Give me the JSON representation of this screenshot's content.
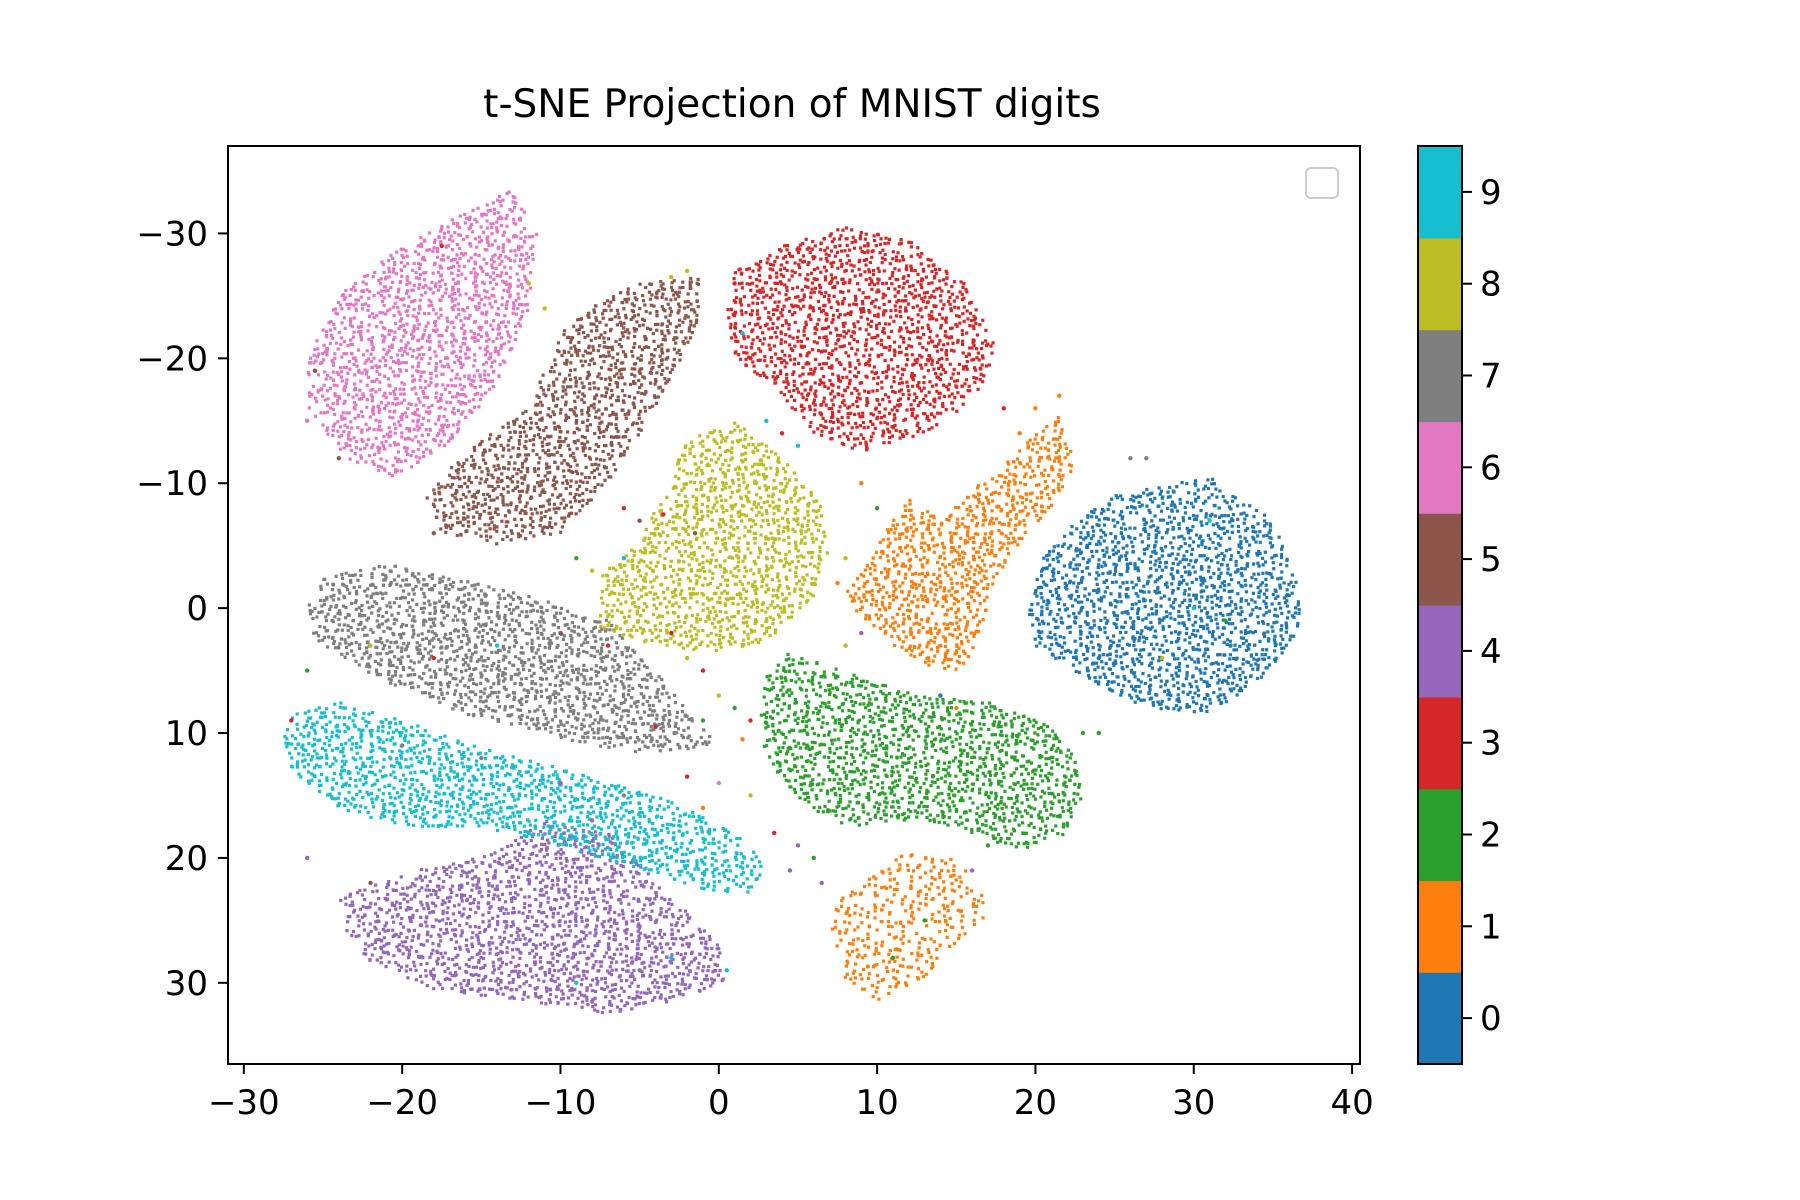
{
  "chart_data": {
    "type": "scatter",
    "title": "t-SNE Projection of MNIST digits",
    "xlabel": "",
    "ylabel": "",
    "xlim": [
      -31,
      40.5
    ],
    "ylim": [
      -37,
      36.5
    ],
    "y_inverted": true,
    "x_ticks": [
      -30,
      -20,
      -10,
      0,
      10,
      20,
      30,
      40
    ],
    "x_tick_labels": [
      "−30",
      "−20",
      "−10",
      "0",
      "10",
      "20",
      "30",
      "40"
    ],
    "y_ticks": [
      -30,
      -20,
      -10,
      0,
      10,
      20,
      30
    ],
    "y_tick_labels": [
      "−30",
      "−20",
      "−10",
      "0",
      "10",
      "20",
      "30"
    ],
    "grid": false,
    "legend": {
      "placement": "top-right",
      "entries": []
    },
    "colorbar": {
      "labels": [
        "0",
        "1",
        "2",
        "3",
        "4",
        "5",
        "6",
        "7",
        "8",
        "9"
      ],
      "colors": [
        "#1f77b4",
        "#ff7f0e",
        "#2ca02c",
        "#d62728",
        "#9467bd",
        "#8c564b",
        "#e377c2",
        "#7f7f7f",
        "#bcbd22",
        "#17becf"
      ]
    },
    "series": [
      {
        "name": "0",
        "color": "#1f77b4",
        "clusters": [
          {
            "polygon": [
              [
                25,
                -9
              ],
              [
                31,
                -10.5
              ],
              [
                35,
                -7
              ],
              [
                36.5,
                -2
              ],
              [
                37,
                1
              ],
              [
                35,
                5
              ],
              [
                31,
                8.5
              ],
              [
                27,
                8
              ],
              [
                23,
                5.5
              ],
              [
                20,
                3
              ],
              [
                19.5,
                0
              ],
              [
                20.5,
                -4
              ],
              [
                23,
                -7.5
              ]
            ],
            "density": 1.0
          }
        ]
      },
      {
        "name": "1",
        "color": "#ff7f0e",
        "clusters": [
          {
            "polygon": [
              [
                14,
                -7
              ],
              [
                17,
                -10.5
              ],
              [
                21.5,
                -15.5
              ],
              [
                22.5,
                -11.5
              ],
              [
                21,
                -8
              ],
              [
                19,
                -5
              ],
              [
                17.5,
                -2
              ],
              [
                16.5,
                2
              ],
              [
                15.5,
                5
              ],
              [
                13.5,
                5
              ],
              [
                11,
                3
              ],
              [
                8.5,
                0
              ],
              [
                8,
                -1.5
              ],
              [
                9.5,
                -4
              ],
              [
                11,
                -7
              ],
              [
                12,
                -9
              ]
            ],
            "density": 1.0
          },
          {
            "polygon": [
              [
                9,
                22
              ],
              [
                12,
                19.5
              ],
              [
                15,
                20
              ],
              [
                16.5,
                22.5
              ],
              [
                17,
                24.5
              ],
              [
                15,
                27
              ],
              [
                13,
                29.5
              ],
              [
                10,
                31.5
              ],
              [
                8,
                30
              ],
              [
                7,
                26
              ],
              [
                7.5,
                23.5
              ]
            ],
            "density": 0.65
          }
        ]
      },
      {
        "name": "2",
        "color": "#2ca02c",
        "clusters": [
          {
            "polygon": [
              [
                4,
                3.5
              ],
              [
                7,
                4.5
              ],
              [
                10,
                6
              ],
              [
                13,
                7
              ],
              [
                17,
                7.5
              ],
              [
                21,
                9.5
              ],
              [
                22.5,
                12
              ],
              [
                23,
                15
              ],
              [
                22,
                18
              ],
              [
                19,
                19.5
              ],
              [
                15,
                17.5
              ],
              [
                12,
                17
              ],
              [
                8,
                17.5
              ],
              [
                5,
                15.5
              ],
              [
                3,
                12
              ],
              [
                2.5,
                8
              ],
              [
                3,
                5.5
              ]
            ],
            "density": 1.0
          }
        ]
      },
      {
        "name": "3",
        "color": "#d62728",
        "clusters": [
          {
            "polygon": [
              [
                1,
                -27
              ],
              [
                4,
                -29
              ],
              [
                8,
                -30.5
              ],
              [
                12,
                -29.5
              ],
              [
                15.5,
                -26
              ],
              [
                17.5,
                -21
              ],
              [
                16.5,
                -17
              ],
              [
                13,
                -14
              ],
              [
                9,
                -12.5
              ],
              [
                6,
                -14
              ],
              [
                3.5,
                -17.5
              ],
              [
                1,
                -20
              ],
              [
                0.5,
                -24
              ]
            ],
            "density": 1.0
          }
        ]
      },
      {
        "name": "4",
        "color": "#9467bd",
        "clusters": [
          {
            "polygon": [
              [
                -24,
                23
              ],
              [
                -19,
                21
              ],
              [
                -14,
                19.5
              ],
              [
                -11,
                17
              ],
              [
                -7,
                18
              ],
              [
                -3,
                23
              ],
              [
                0,
                27
              ],
              [
                0.5,
                30
              ],
              [
                -3,
                31.5
              ],
              [
                -7,
                32.5
              ],
              [
                -12,
                31.5
              ],
              [
                -18,
                30.5
              ],
              [
                -22,
                28.5
              ],
              [
                -23.5,
                26
              ]
            ],
            "density": 1.0
          }
        ]
      },
      {
        "name": "5",
        "color": "#8c564b",
        "clusters": [
          {
            "polygon": [
              [
                -5,
                -26
              ],
              [
                -1,
                -26.5
              ],
              [
                -1.5,
                -22
              ],
              [
                -4,
                -16
              ],
              [
                -7,
                -10
              ],
              [
                -10,
                -6
              ],
              [
                -14,
                -5
              ],
              [
                -17.5,
                -6
              ],
              [
                -18.5,
                -9
              ],
              [
                -16,
                -12.5
              ],
              [
                -12,
                -16
              ],
              [
                -10,
                -22
              ],
              [
                -7.5,
                -24.5
              ]
            ],
            "density": 1.0
          }
        ]
      },
      {
        "name": "6",
        "color": "#e377c2",
        "clusters": [
          {
            "polygon": [
              [
                -17,
                -31
              ],
              [
                -13,
                -33.5
              ],
              [
                -11.5,
                -30
              ],
              [
                -12,
                -24
              ],
              [
                -14,
                -18
              ],
              [
                -17,
                -13
              ],
              [
                -20.5,
                -10.5
              ],
              [
                -23.5,
                -12
              ],
              [
                -26,
                -16
              ],
              [
                -26,
                -20
              ],
              [
                -24,
                -25
              ],
              [
                -20.5,
                -28.5
              ]
            ],
            "density": 1.0
          }
        ]
      },
      {
        "name": "7",
        "color": "#7f7f7f",
        "clusters": [
          {
            "polygon": [
              [
                -25,
                -2.5
              ],
              [
                -21,
                -3.5
              ],
              [
                -17,
                -2.5
              ],
              [
                -12,
                -1
              ],
              [
                -7,
                1
              ],
              [
                -4,
                5
              ],
              [
                -1.5,
                9
              ],
              [
                0,
                11
              ],
              [
                -3,
                11.5
              ],
              [
                -7,
                11.5
              ],
              [
                -11,
                10
              ],
              [
                -16,
                8.5
              ],
              [
                -21,
                6
              ],
              [
                -25.5,
                2.5
              ],
              [
                -26,
                0
              ]
            ],
            "density": 1.0
          }
        ]
      },
      {
        "name": "8",
        "color": "#bcbd22",
        "clusters": [
          {
            "polygon": [
              [
                -2,
                -13.5
              ],
              [
                1,
                -15
              ],
              [
                4,
                -12
              ],
              [
                6.5,
                -8.5
              ],
              [
                7,
                -5
              ],
              [
                6,
                -1
              ],
              [
                3.5,
                2.5
              ],
              [
                0,
                3.5
              ],
              [
                -4,
                3
              ],
              [
                -7.5,
                1.5
              ],
              [
                -7.5,
                -2.5
              ],
              [
                -5,
                -5.5
              ],
              [
                -3.5,
                -9
              ]
            ],
            "density": 0.95
          }
        ]
      },
      {
        "name": "9",
        "color": "#17becf",
        "clusters": [
          {
            "polygon": [
              [
                -27,
                8.5
              ],
              [
                -24,
                7.5
              ],
              [
                -20,
                9
              ],
              [
                -14,
                11.5
              ],
              [
                -8,
                13.5
              ],
              [
                -3,
                15.5
              ],
              [
                1,
                18
              ],
              [
                3,
                20.5
              ],
              [
                2,
                23
              ],
              [
                -1,
                22.5
              ],
              [
                -5,
                21
              ],
              [
                -10,
                19
              ],
              [
                -15,
                17.5
              ],
              [
                -20,
                17.5
              ],
              [
                -24,
                16
              ],
              [
                -27,
                13
              ],
              [
                -27.5,
                10.5
              ]
            ],
            "density": 1.0
          }
        ]
      }
    ],
    "stray_points": [
      [
        -26,
        -15,
        6
      ],
      [
        -25.5,
        -19,
        5
      ],
      [
        -24,
        -12,
        5
      ],
      [
        -18,
        -6,
        5
      ],
      [
        -17.5,
        -29,
        3
      ],
      [
        -12,
        -26,
        8
      ],
      [
        -11,
        -24,
        8
      ],
      [
        -3,
        -26.5,
        8
      ],
      [
        -2,
        -27,
        8
      ],
      [
        1,
        -26,
        3
      ],
      [
        1.5,
        -22,
        9
      ],
      [
        2,
        -20,
        3
      ],
      [
        3,
        -15,
        9
      ],
      [
        4,
        -14,
        3
      ],
      [
        5,
        -13,
        9
      ],
      [
        -6,
        -8,
        3
      ],
      [
        -5,
        -7,
        5
      ],
      [
        -3.5,
        -7.5,
        3
      ],
      [
        -1.5,
        -6,
        5
      ],
      [
        -8,
        -3,
        8
      ],
      [
        -9,
        -4,
        2
      ],
      [
        -6,
        -4,
        9
      ],
      [
        -3,
        2,
        3
      ],
      [
        -2,
        4,
        8
      ],
      [
        -1,
        5,
        3
      ],
      [
        0,
        7,
        8
      ],
      [
        1,
        8,
        2
      ],
      [
        2,
        9,
        3
      ],
      [
        -1,
        9,
        2
      ],
      [
        -4,
        9.5,
        3
      ],
      [
        1.5,
        10.5,
        1
      ],
      [
        -10,
        2,
        5
      ],
      [
        -7,
        3,
        3
      ],
      [
        -14,
        3,
        9
      ],
      [
        -18,
        4,
        3
      ],
      [
        -22,
        3,
        8
      ],
      [
        -26,
        5,
        2
      ],
      [
        -27,
        9,
        3
      ],
      [
        -20,
        11,
        7
      ],
      [
        -15,
        12,
        7
      ],
      [
        -10,
        14,
        4
      ],
      [
        -6,
        15,
        7
      ],
      [
        -2,
        13.5,
        3
      ],
      [
        0,
        14,
        6
      ],
      [
        2,
        15,
        8
      ],
      [
        -1,
        16,
        1
      ],
      [
        -8,
        17,
        4
      ],
      [
        -12,
        18,
        9
      ],
      [
        3.5,
        18,
        3
      ],
      [
        5,
        19,
        4
      ],
      [
        4.5,
        21,
        4
      ],
      [
        6,
        20,
        2
      ],
      [
        -22,
        22,
        5
      ],
      [
        -26,
        20,
        4
      ],
      [
        -3,
        28,
        9
      ],
      [
        -5,
        29,
        7
      ],
      [
        -9,
        30,
        9
      ],
      [
        0.5,
        29,
        9
      ],
      [
        -8,
        31.5,
        4
      ],
      [
        9,
        -10,
        1
      ],
      [
        10,
        -8,
        2
      ],
      [
        8,
        -4,
        8
      ],
      [
        7.5,
        -2,
        1
      ],
      [
        9,
        2,
        4
      ],
      [
        8,
        3,
        8
      ],
      [
        14,
        7,
        0
      ],
      [
        15,
        8,
        1
      ],
      [
        18,
        -16,
        3
      ],
      [
        19,
        -14,
        1
      ],
      [
        20,
        -16,
        1
      ],
      [
        21.5,
        -17,
        1
      ],
      [
        26,
        -12,
        7
      ],
      [
        27,
        -12,
        7
      ],
      [
        24,
        4,
        0
      ],
      [
        23,
        10,
        2
      ],
      [
        24,
        10,
        2
      ],
      [
        17,
        19,
        2
      ],
      [
        16,
        21,
        4
      ],
      [
        6.5,
        22,
        4
      ],
      [
        11,
        28,
        2
      ],
      [
        13,
        25,
        2
      ],
      [
        31,
        -7,
        9
      ],
      [
        30,
        0,
        9
      ],
      [
        28,
        4,
        8
      ],
      [
        32,
        1,
        2
      ]
    ]
  }
}
